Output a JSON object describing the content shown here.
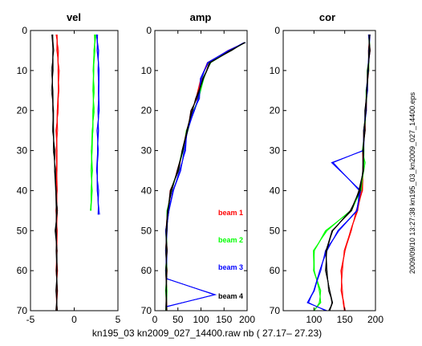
{
  "chart_data": [
    {
      "type": "line",
      "title": "vel",
      "xlim": [
        -5,
        5
      ],
      "ylim": [
        70,
        0
      ],
      "y_reversed": true,
      "xticks": [
        -5,
        0,
        5
      ],
      "yticks": [
        0,
        10,
        20,
        30,
        40,
        50,
        60,
        70
      ],
      "series": [
        {
          "color": "#ff0000",
          "x": [
            -2.0,
            -1.9,
            -1.8,
            -1.8,
            -1.9,
            -2.0,
            -2.0,
            -2.0,
            -2.0,
            -2.0,
            -2.0,
            -2.0,
            -2.0,
            -2.0,
            -2.0
          ],
          "y": [
            1,
            5,
            10,
            15,
            20,
            25,
            30,
            35,
            40,
            45,
            50,
            55,
            60,
            65,
            70
          ]
        },
        {
          "color": "#000000",
          "x": [
            -2.5,
            -2.4,
            -2.5,
            -2.5,
            -2.4,
            -2.4,
            -2.3,
            -2.2,
            -2.1,
            -2.0,
            -2.1,
            -2.0,
            -2.0,
            -2.0,
            -2.0
          ],
          "y": [
            1,
            5,
            10,
            15,
            20,
            25,
            30,
            35,
            40,
            45,
            50,
            55,
            60,
            65,
            70
          ]
        },
        {
          "color": "#00ff00",
          "x": [
            2.4,
            2.3,
            2.2,
            2.2,
            2.2,
            2.1,
            2.0,
            2.0,
            2.0,
            1.9
          ],
          "y": [
            1,
            5,
            10,
            15,
            20,
            25,
            30,
            35,
            40,
            45
          ]
        },
        {
          "color": "#0000ff",
          "x": [
            2.6,
            2.7,
            2.8,
            2.8,
            2.8,
            2.7,
            2.7,
            2.6,
            2.7,
            2.8
          ],
          "y": [
            1,
            5,
            10,
            15,
            20,
            25,
            30,
            35,
            40,
            46
          ]
        }
      ]
    },
    {
      "type": "line",
      "title": "amp",
      "xlim": [
        0,
        200
      ],
      "ylim": [
        70,
        0
      ],
      "y_reversed": true,
      "xticks": [
        0,
        50,
        100,
        150,
        200
      ],
      "yticks": [
        0,
        10,
        20,
        30,
        40,
        50,
        60,
        70
      ],
      "legend": [
        "beam 1",
        "beam 2",
        "beam 3",
        "beam 4"
      ],
      "legend_colors": [
        "#ff0000",
        "#00ff00",
        "#0000ff",
        "#000000"
      ],
      "series": [
        {
          "name": "beam 1",
          "color": "#ff0000",
          "x": [
            195,
            160,
            115,
            100,
            90,
            80,
            70,
            60,
            50,
            35,
            28,
            25,
            25,
            25,
            25,
            25
          ],
          "y": [
            3,
            5,
            8,
            12,
            17,
            20,
            25,
            30,
            35,
            40,
            45,
            50,
            55,
            60,
            65,
            70
          ]
        },
        {
          "name": "beam 2",
          "color": "#00ff00",
          "x": [
            195,
            165,
            120,
            105,
            95,
            85,
            70,
            60,
            50,
            35,
            28,
            25,
            25,
            25,
            25,
            25
          ],
          "y": [
            3,
            5,
            8,
            12,
            17,
            20,
            25,
            30,
            35,
            40,
            45,
            50,
            55,
            60,
            65,
            70
          ]
        },
        {
          "name": "beam 3",
          "color": "#0000ff",
          "x": [
            195,
            160,
            115,
            100,
            95,
            85,
            70,
            65,
            55,
            40,
            30,
            25,
            25,
            25,
            130,
            25
          ],
          "y": [
            3,
            5,
            8,
            12,
            17,
            20,
            25,
            30,
            35,
            40,
            45,
            50,
            55,
            62,
            66,
            69
          ]
        },
        {
          "name": "beam 4",
          "color": "#000000",
          "x": [
            195,
            165,
            120,
            105,
            90,
            80,
            70,
            60,
            50,
            35,
            28,
            25,
            25,
            25,
            25,
            25
          ],
          "y": [
            3,
            5,
            8,
            12,
            17,
            20,
            25,
            30,
            35,
            40,
            45,
            50,
            55,
            60,
            65,
            70
          ]
        }
      ]
    },
    {
      "type": "line",
      "title": "cor",
      "xlim": [
        50,
        200
      ],
      "ylim": [
        70,
        0
      ],
      "y_reversed": true,
      "xticks": [
        100,
        150,
        200
      ],
      "yticks": [
        0,
        10,
        20,
        30,
        40,
        50,
        60,
        70
      ],
      "series": [
        {
          "color": "#ff0000",
          "x": [
            190,
            190,
            188,
            186,
            184,
            182,
            180,
            180,
            178,
            170,
            160,
            150,
            145,
            145,
            148,
            150
          ],
          "y": [
            1,
            5,
            10,
            15,
            20,
            25,
            30,
            35,
            40,
            45,
            50,
            55,
            60,
            65,
            68,
            70
          ]
        },
        {
          "color": "#00ff00",
          "x": [
            190,
            190,
            188,
            186,
            184,
            182,
            180,
            182,
            176,
            160,
            120,
            100,
            100,
            110,
            110,
            100
          ],
          "y": [
            1,
            5,
            10,
            15,
            20,
            25,
            30,
            33,
            40,
            45,
            50,
            55,
            60,
            65,
            68,
            70
          ]
        },
        {
          "color": "#0000ff",
          "x": [
            190,
            190,
            188,
            186,
            184,
            182,
            180,
            130,
            175,
            170,
            140,
            120,
            110,
            100,
            90,
            120
          ],
          "y": [
            1,
            5,
            10,
            15,
            20,
            25,
            30,
            33,
            40,
            45,
            50,
            55,
            60,
            65,
            68,
            70
          ]
        },
        {
          "color": "#000000",
          "x": [
            190,
            190,
            188,
            186,
            184,
            182,
            180,
            180,
            174,
            160,
            130,
            120,
            120,
            125,
            130,
            125
          ],
          "y": [
            1,
            5,
            10,
            15,
            20,
            25,
            30,
            35,
            40,
            45,
            50,
            55,
            60,
            65,
            68,
            70
          ]
        }
      ]
    }
  ],
  "xlabel": "kn195_03  kn2009_027_14400.raw nb ( 27.17– 27.23)",
  "side_label": "2009/09/10 13:27:38  kn195_03_kn2009_027_14400.eps"
}
